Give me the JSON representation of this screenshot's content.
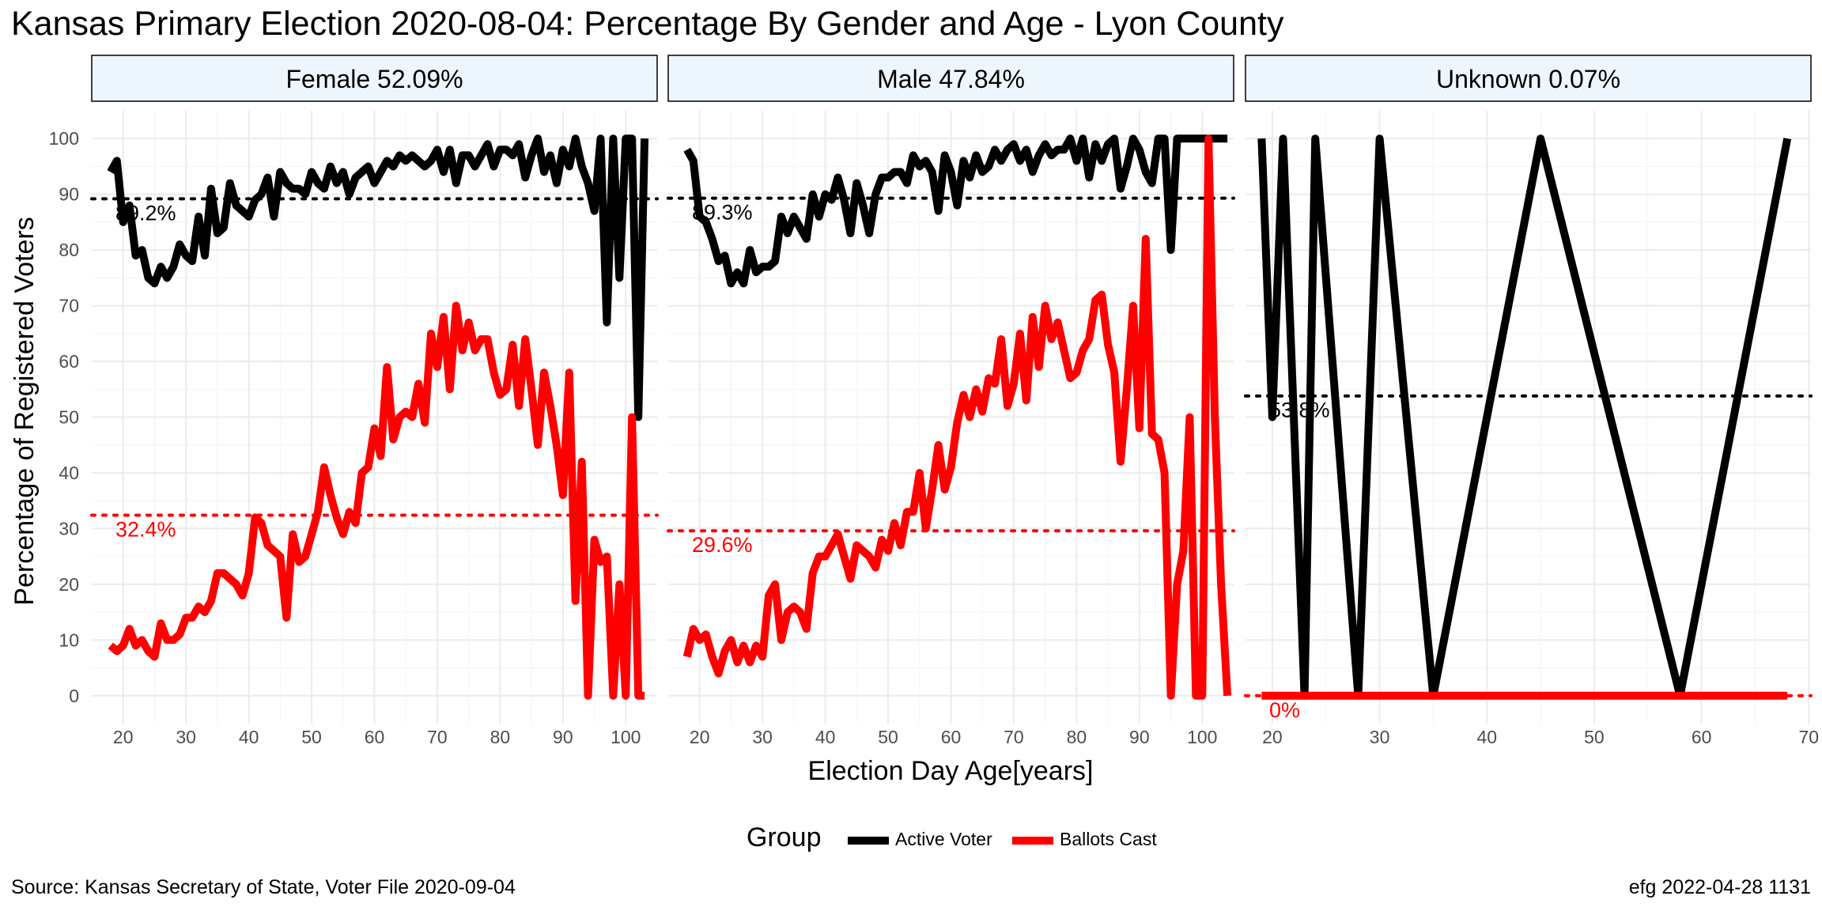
{
  "title": "Kansas Primary Election 2020-08-04:  Percentage By Gender and Age - Lyon County",
  "footer": {
    "source": "Source:  Kansas Secretary of State, Voter File  2020-09-04",
    "stamp": "efg 2022-04-28 1131"
  },
  "legend": {
    "title": "Group",
    "items": [
      {
        "label": "Active Voter",
        "color": "#000000"
      },
      {
        "label": "Ballots Cast",
        "color": "#ff0000"
      }
    ]
  },
  "colors": {
    "active": "#000000",
    "ballots": "#ff0000",
    "strip_fill": "#eef6fd",
    "grid": "#ebebeb"
  },
  "chart_data": [
    {
      "type": "line",
      "panel": "Female 52.09%",
      "xlabel": "Election Day Age[years]",
      "ylabel": "Percentage of Registered Voters",
      "xlim": [
        15,
        105
      ],
      "ylim": [
        -5,
        105
      ],
      "xticks": [
        20,
        30,
        40,
        50,
        60,
        70,
        80,
        90,
        100
      ],
      "yticks": [
        0,
        10,
        20,
        30,
        40,
        50,
        60,
        70,
        80,
        90,
        100
      ],
      "reference_lines": [
        {
          "series": "Active Voter",
          "value": 89.2,
          "label": "89.2%"
        },
        {
          "series": "Ballots Cast",
          "value": 32.4,
          "label": "32.4%"
        }
      ],
      "series": [
        {
          "name": "Active Voter",
          "x": [
            18,
            19,
            20,
            21,
            22,
            23,
            24,
            25,
            26,
            27,
            28,
            29,
            30,
            31,
            32,
            33,
            34,
            35,
            36,
            37,
            38,
            39,
            40,
            41,
            42,
            43,
            44,
            45,
            46,
            47,
            48,
            49,
            50,
            51,
            52,
            53,
            54,
            55,
            56,
            57,
            58,
            59,
            60,
            61,
            62,
            63,
            64,
            65,
            66,
            67,
            68,
            69,
            70,
            71,
            72,
            73,
            74,
            75,
            76,
            77,
            78,
            79,
            80,
            81,
            82,
            83,
            84,
            85,
            86,
            87,
            88,
            89,
            90,
            91,
            92,
            93,
            94,
            95,
            96,
            97,
            98,
            99,
            100,
            101,
            102,
            103
          ],
          "y": [
            94,
            96,
            85,
            88,
            79,
            80,
            75,
            74,
            77,
            75,
            77,
            81,
            79,
            78,
            86,
            79,
            91,
            83,
            84,
            92,
            88,
            87,
            86,
            89,
            90,
            93,
            86,
            94,
            92,
            91,
            91,
            90,
            94,
            92,
            91,
            95,
            92,
            94,
            90,
            93,
            94,
            95,
            92,
            94,
            96,
            95,
            97,
            96,
            97,
            96,
            95,
            96,
            98,
            94,
            98,
            92,
            97,
            97,
            95,
            97,
            99,
            95,
            98,
            98,
            97,
            99,
            93,
            97,
            100,
            94,
            97,
            92,
            98,
            95,
            100,
            95,
            92,
            87,
            100,
            67,
            100,
            75,
            100,
            100,
            50,
            100
          ]
        },
        {
          "name": "Ballots Cast",
          "x": [
            18,
            19,
            20,
            21,
            22,
            23,
            24,
            25,
            26,
            27,
            28,
            29,
            30,
            31,
            32,
            33,
            34,
            35,
            36,
            37,
            38,
            39,
            40,
            41,
            42,
            43,
            44,
            45,
            46,
            47,
            48,
            49,
            50,
            51,
            52,
            53,
            54,
            55,
            56,
            57,
            58,
            59,
            60,
            61,
            62,
            63,
            64,
            65,
            66,
            67,
            68,
            69,
            70,
            71,
            72,
            73,
            74,
            75,
            76,
            77,
            78,
            79,
            80,
            81,
            82,
            83,
            84,
            85,
            86,
            87,
            88,
            89,
            90,
            91,
            92,
            93,
            94,
            95,
            96,
            97,
            98,
            99,
            100,
            101,
            102,
            103
          ],
          "y": [
            9,
            8,
            9,
            12,
            9,
            10,
            8,
            7,
            13,
            10,
            10,
            11,
            14,
            14,
            16,
            15,
            17,
            22,
            22,
            21,
            20,
            18,
            22,
            32,
            31,
            27,
            26,
            25,
            14,
            29,
            24,
            25,
            29,
            33,
            41,
            36,
            32,
            29,
            33,
            31,
            40,
            41,
            48,
            43,
            59,
            46,
            50,
            51,
            50,
            56,
            49,
            65,
            59,
            68,
            55,
            70,
            62,
            67,
            62,
            64,
            64,
            58,
            54,
            55,
            63,
            52,
            64,
            55,
            45,
            58,
            52,
            45,
            36,
            58,
            17,
            42,
            0,
            28,
            24,
            25,
            0,
            20,
            0,
            50,
            0,
            0
          ]
        }
      ]
    },
    {
      "type": "line",
      "panel": "Male 47.84%",
      "xlabel": "Election Day Age[years]",
      "ylabel": "Percentage of Registered Voters",
      "xlim": [
        15,
        105
      ],
      "ylim": [
        -5,
        105
      ],
      "xticks": [
        20,
        30,
        40,
        50,
        60,
        70,
        80,
        90,
        100
      ],
      "yticks": [
        0,
        10,
        20,
        30,
        40,
        50,
        60,
        70,
        80,
        90,
        100
      ],
      "reference_lines": [
        {
          "series": "Active Voter",
          "value": 89.3,
          "label": "89.3%"
        },
        {
          "series": "Ballots Cast",
          "value": 29.6,
          "label": "29.6%"
        }
      ],
      "series": [
        {
          "name": "Active Voter",
          "x": [
            18,
            19,
            20,
            21,
            22,
            23,
            24,
            25,
            26,
            27,
            28,
            29,
            30,
            31,
            32,
            33,
            34,
            35,
            36,
            37,
            38,
            39,
            40,
            41,
            42,
            43,
            44,
            45,
            46,
            47,
            48,
            49,
            50,
            51,
            52,
            53,
            54,
            55,
            56,
            57,
            58,
            59,
            60,
            61,
            62,
            63,
            64,
            65,
            66,
            67,
            68,
            69,
            70,
            71,
            72,
            73,
            74,
            75,
            76,
            77,
            78,
            79,
            80,
            81,
            82,
            83,
            84,
            85,
            86,
            87,
            88,
            89,
            90,
            91,
            92,
            93,
            94,
            95,
            96,
            97,
            98,
            99,
            100,
            101,
            102,
            103,
            104
          ],
          "y": [
            98,
            96,
            86,
            85,
            82,
            78,
            79,
            74,
            76,
            74,
            80,
            76,
            77,
            77,
            78,
            86,
            83,
            86,
            84,
            82,
            90,
            86,
            90,
            89,
            93,
            89,
            83,
            92,
            88,
            83,
            90,
            93,
            93,
            94,
            94,
            92,
            97,
            95,
            96,
            94,
            87,
            97,
            94,
            88,
            96,
            93,
            97,
            94,
            95,
            98,
            96,
            98,
            99,
            96,
            98,
            94,
            97,
            99,
            97,
            98,
            98,
            100,
            96,
            100,
            93,
            99,
            96,
            99,
            100,
            91,
            95,
            100,
            98,
            94,
            92,
            100,
            100,
            80,
            100,
            100,
            100,
            100,
            100,
            100,
            100,
            100,
            100
          ]
        },
        {
          "name": "Ballots Cast",
          "x": [
            18,
            19,
            20,
            21,
            22,
            23,
            24,
            25,
            26,
            27,
            28,
            29,
            30,
            31,
            32,
            33,
            34,
            35,
            36,
            37,
            38,
            39,
            40,
            41,
            42,
            43,
            44,
            45,
            46,
            47,
            48,
            49,
            50,
            51,
            52,
            53,
            54,
            55,
            56,
            57,
            58,
            59,
            60,
            61,
            62,
            63,
            64,
            65,
            66,
            67,
            68,
            69,
            70,
            71,
            72,
            73,
            74,
            75,
            76,
            77,
            78,
            79,
            80,
            81,
            82,
            83,
            84,
            85,
            86,
            87,
            88,
            89,
            90,
            91,
            92,
            93,
            94,
            95,
            96,
            97,
            98,
            99,
            100,
            101,
            102,
            103,
            104
          ],
          "y": [
            7,
            12,
            10,
            11,
            7,
            4,
            8,
            10,
            6,
            9,
            6,
            9,
            7,
            18,
            20,
            10,
            15,
            16,
            15,
            12,
            22,
            25,
            25,
            27,
            29,
            25,
            21,
            27,
            26,
            25,
            23,
            28,
            26,
            31,
            27,
            33,
            33,
            40,
            30,
            37,
            45,
            37,
            41,
            49,
            54,
            50,
            55,
            51,
            57,
            56,
            64,
            52,
            56,
            65,
            53,
            68,
            59,
            70,
            64,
            67,
            62,
            57,
            58,
            62,
            64,
            71,
            72,
            63,
            58,
            42,
            55,
            70,
            48,
            82,
            47,
            46,
            40,
            0,
            20,
            26,
            50,
            0,
            0,
            100,
            50,
            20,
            0
          ]
        }
      ]
    },
    {
      "type": "line",
      "panel": "Unknown 0.07%",
      "xlabel": "Election Day Age[years]",
      "ylabel": "Percentage of Registered Voters",
      "xlim": [
        17.5,
        70.2
      ],
      "ylim": [
        -5,
        105
      ],
      "xticks": [
        20,
        30,
        40,
        50,
        60,
        70
      ],
      "yticks": [
        0,
        10,
        20,
        30,
        40,
        50,
        60,
        70,
        80,
        90,
        100
      ],
      "reference_lines": [
        {
          "series": "Active Voter",
          "value": 53.8,
          "label": "53.8%"
        },
        {
          "series": "Ballots Cast",
          "value": 0,
          "label": "0%"
        }
      ],
      "series": [
        {
          "name": "Active Voter",
          "x": [
            19,
            20,
            21,
            23,
            24,
            28,
            30,
            35,
            45,
            58,
            68
          ],
          "y": [
            100,
            50,
            100,
            0,
            100,
            0,
            100,
            0,
            100,
            0,
            100
          ]
        },
        {
          "name": "Ballots Cast",
          "x": [
            19,
            20,
            21,
            23,
            24,
            28,
            30,
            35,
            45,
            58,
            68
          ],
          "y": [
            0,
            0,
            0,
            0,
            0,
            0,
            0,
            0,
            0,
            0,
            0
          ]
        }
      ]
    }
  ]
}
